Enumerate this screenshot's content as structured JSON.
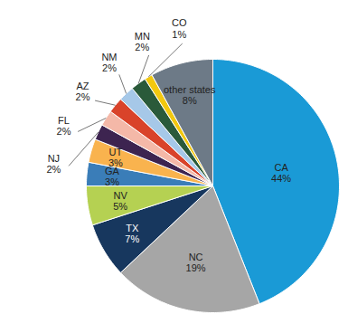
{
  "chart_data": {
    "type": "pie",
    "categories": [
      "CA",
      "NC",
      "TX",
      "NV",
      "GA",
      "UT",
      "NJ",
      "FL",
      "AZ",
      "NM",
      "MN",
      "CO",
      "other states"
    ],
    "values": [
      44,
      19,
      7,
      5,
      3,
      3,
      2,
      2,
      2,
      2,
      2,
      1,
      8
    ],
    "value_labels": [
      "44%",
      "19%",
      "7%",
      "5%",
      "3%",
      "3%",
      "2%",
      "2%",
      "2%",
      "2%",
      "2%",
      "1%",
      "8%"
    ],
    "colors": [
      "#1a9ad6",
      "#a6a6a6",
      "#17375e",
      "#b5d152",
      "#3a7db8",
      "#f9b34e",
      "#3d2450",
      "#f4b8a8",
      "#d9432a",
      "#a6c8e8",
      "#2a5a3a",
      "#f2c80f",
      "#6d7a87"
    ],
    "data_labels": true
  }
}
